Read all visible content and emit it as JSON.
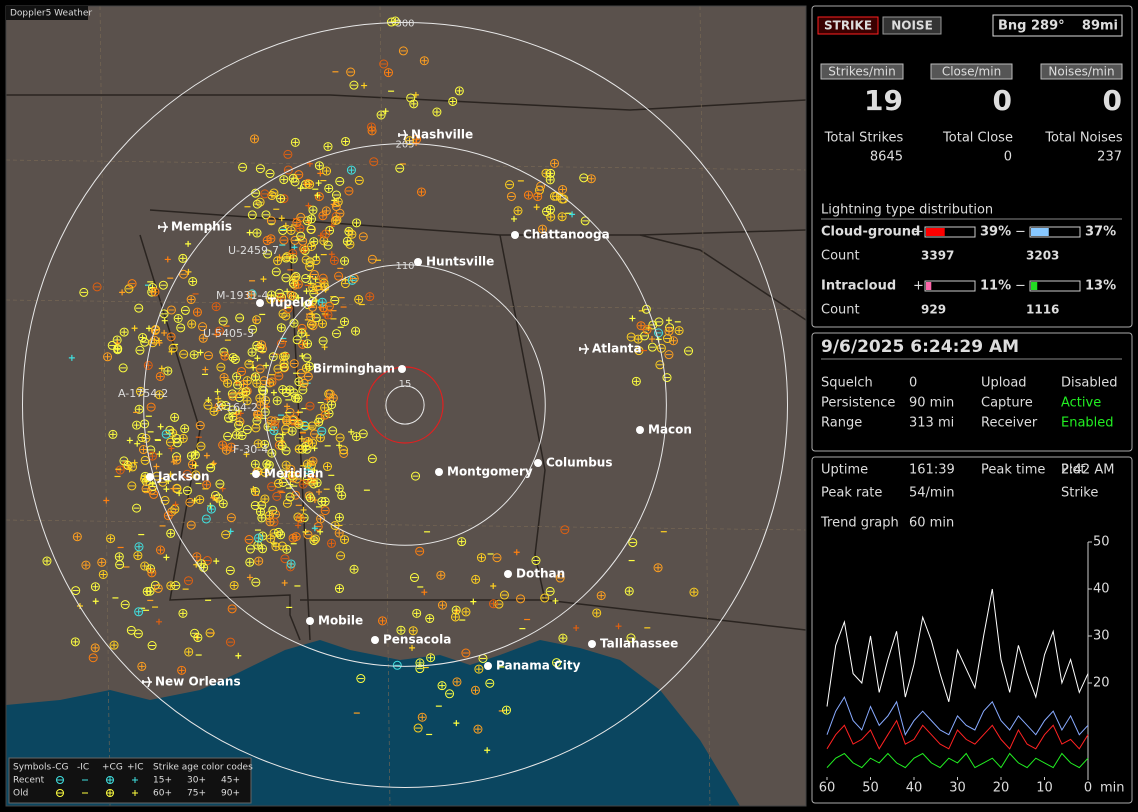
{
  "app_title": "Doppler5 Weather",
  "map": {
    "range_rings": [
      300,
      205,
      110,
      15
    ],
    "cities": [
      "Nashville",
      "Memphis",
      "Chattanooga",
      "Huntsville",
      "Tupelo",
      "Birmingham",
      "Atlanta",
      "Macon",
      "Jackson",
      "Meridian",
      "Montgomery",
      "Columbus",
      "Dothan",
      "Mobile",
      "Pensacola",
      "Panama City",
      "Tallahassee",
      "New Orleans"
    ],
    "storm_labels": [
      "U-2459-7",
      "M-1931-4",
      "U-5405-3",
      "A-1754-2",
      "X-164-2",
      "F-30-4"
    ],
    "legend": {
      "symbols_title": "Symbols",
      "symbol_types": [
        "-CG",
        "-IC",
        "+CG",
        "+IC"
      ],
      "age_title": "Strike age color codes",
      "rows": [
        "Recent",
        "Old"
      ],
      "recent_ages": [
        "15+",
        "30+",
        "45+"
      ],
      "old_ages": [
        "60+",
        "75+",
        "90+"
      ]
    }
  },
  "panel": {
    "mode_buttons": [
      "STRIKE",
      "NOISE"
    ],
    "bearing": "Bng 289°",
    "distance": "89mi",
    "rates": [
      {
        "label": "Strikes/min",
        "value": 19
      },
      {
        "label": "Close/min",
        "value": 0
      },
      {
        "label": "Noises/min",
        "value": 0
      }
    ],
    "totals": [
      {
        "label": "Total Strikes",
        "value": 8645
      },
      {
        "label": "Total Close",
        "value": 0
      },
      {
        "label": "Total Noises",
        "value": 237
      }
    ],
    "distribution": {
      "title": "Lightning type distribution",
      "count_label": "Count",
      "rows": [
        {
          "name": "Cloud-ground",
          "pos_sign": "+",
          "neg_sign": "−",
          "pos_pct": {
            "value": 39,
            "label": "39%"
          },
          "neg_pct": {
            "value": 37,
            "label": "37%"
          },
          "pos_count": 3397,
          "neg_count": 3203,
          "pos_color": "#ff0000",
          "neg_color": "#88c8ff"
        },
        {
          "name": "Intracloud",
          "pos_sign": "+",
          "neg_sign": "−",
          "pos_pct": {
            "value": 11,
            "label": "11%"
          },
          "neg_pct": {
            "value": 13,
            "label": "13%"
          },
          "pos_count": 929,
          "neg_count": 1116,
          "pos_color": "#ff66aa",
          "neg_color": "#22dd22"
        }
      ]
    },
    "datetime": "9/6/2025 6:24:29 AM",
    "settings": [
      [
        {
          "label": "Squelch",
          "value": 0
        },
        {
          "label": "Upload",
          "value": "Disabled"
        }
      ],
      [
        {
          "label": "Persistence",
          "value": "90 min"
        },
        {
          "label": "Capture",
          "value": "Active"
        }
      ],
      [
        {
          "label": "Range",
          "value": "313 mi"
        },
        {
          "label": "Receiver",
          "value": "Enabled"
        }
      ]
    ],
    "status": [
      [
        {
          "label": "Uptime",
          "value": "161:39"
        },
        {
          "label": "Peak time",
          "value": "2:42 AM"
        },
        {
          "label": "Plot",
          "value": "Strike"
        }
      ],
      [
        {
          "label": "Peak rate",
          "value": "54/min"
        }
      ]
    ],
    "trend_label": "Trend graph",
    "trend_window": "60 min"
  },
  "chart_data": {
    "type": "line",
    "x": [
      60,
      58,
      56,
      54,
      52,
      50,
      48,
      46,
      44,
      42,
      40,
      38,
      36,
      34,
      32,
      30,
      28,
      26,
      24,
      22,
      20,
      18,
      16,
      14,
      12,
      10,
      8,
      6,
      4,
      2,
      0
    ],
    "xlim": [
      60,
      0
    ],
    "xticks": [
      60,
      50,
      40,
      30,
      20,
      10,
      0
    ],
    "x_unit": "min",
    "ylim": [
      0,
      50
    ],
    "yticks": [
      20,
      30,
      40,
      50
    ],
    "series": [
      {
        "color": "#ffffff",
        "values": [
          15,
          28,
          33,
          22,
          20,
          30,
          18,
          25,
          31,
          17,
          24,
          34,
          29,
          22,
          16,
          27,
          23,
          19,
          30,
          40,
          25,
          18,
          28,
          22,
          17,
          26,
          31,
          20,
          25,
          18,
          22
        ]
      },
      {
        "color": "#88aaff",
        "values": [
          9,
          14,
          17,
          12,
          10,
          15,
          11,
          13,
          16,
          9,
          12,
          14,
          12,
          10,
          9,
          13,
          11,
          10,
          14,
          16,
          12,
          10,
          13,
          11,
          9,
          12,
          14,
          10,
          13,
          9,
          11
        ]
      },
      {
        "color": "#ff2222",
        "values": [
          6,
          9,
          11,
          7,
          8,
          10,
          6,
          9,
          12,
          7,
          8,
          11,
          9,
          7,
          6,
          10,
          8,
          7,
          9,
          11,
          8,
          6,
          10,
          7,
          6,
          9,
          11,
          7,
          8,
          6,
          9
        ]
      },
      {
        "color": "#22ee22",
        "values": [
          2,
          4,
          5,
          3,
          2,
          4,
          3,
          5,
          3,
          2,
          4,
          5,
          3,
          2,
          4,
          3,
          5,
          2,
          3,
          4,
          2,
          5,
          3,
          2,
          4,
          3,
          2,
          5,
          3,
          2,
          4
        ]
      }
    ]
  }
}
